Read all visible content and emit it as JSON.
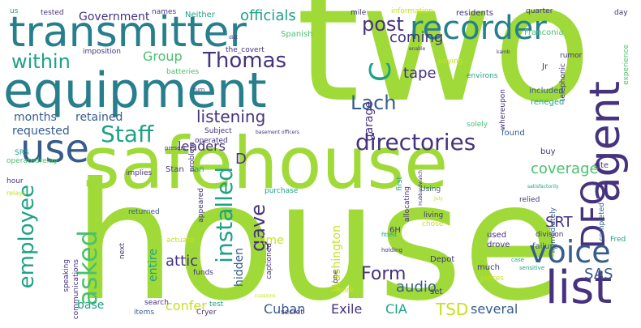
{
  "colors": {
    "background": "#ffffff",
    "lime": "#a0da39",
    "yellow_green": "#c7e020",
    "green": "#4ac16d",
    "teal": "#1fa187",
    "blue_teal": "#277f8e",
    "slate": "#365c8d",
    "indigo": "#46327e",
    "purple": "#440154"
  },
  "words": [
    {
      "text": "two",
      "color": "lime",
      "vertical": false
    },
    {
      "text": "house",
      "color": "lime",
      "vertical": false
    },
    {
      "text": "safehouse",
      "color": "lime",
      "vertical": false
    },
    {
      "text": "equipment",
      "color": "blue_teal",
      "vertical": false
    },
    {
      "text": "transmitter",
      "color": "blue_teal",
      "vertical": false
    },
    {
      "text": "agent",
      "color": "indigo",
      "vertical": true
    },
    {
      "text": "DFO",
      "color": "indigo",
      "vertical": true
    },
    {
      "text": "list",
      "color": "indigo",
      "vertical": false
    },
    {
      "text": "recorder",
      "color": "blue_teal",
      "vertical": false
    },
    {
      "text": "voice",
      "color": "slate",
      "vertical": false
    },
    {
      "text": "use",
      "color": "slate",
      "vertical": false
    },
    {
      "text": "directories",
      "color": "indigo",
      "vertical": false
    },
    {
      "text": "installed",
      "color": "teal",
      "vertical": true
    },
    {
      "text": "Staff",
      "color": "teal",
      "vertical": false
    },
    {
      "text": "asked",
      "color": "green",
      "vertical": true
    },
    {
      "text": "employee",
      "color": "teal",
      "vertical": true
    },
    {
      "text": "within",
      "color": "teal",
      "vertical": false
    },
    {
      "text": "Thomas",
      "color": "indigo",
      "vertical": false
    },
    {
      "text": "C",
      "color": "teal",
      "vertical": true
    },
    {
      "text": "Lach",
      "color": "slate",
      "vertical": false
    },
    {
      "text": "listening",
      "color": "indigo",
      "vertical": false
    },
    {
      "text": "officials",
      "color": "teal",
      "vertical": false
    },
    {
      "text": "post",
      "color": "indigo",
      "vertical": false
    },
    {
      "text": "Government",
      "color": "indigo",
      "vertical": false
    },
    {
      "text": "gave",
      "color": "indigo",
      "vertical": true
    },
    {
      "text": "Form",
      "color": "indigo",
      "vertical": false
    },
    {
      "text": "SAS",
      "color": "slate",
      "vertical": false
    },
    {
      "text": "SRT",
      "color": "indigo",
      "vertical": false
    },
    {
      "text": "TSD",
      "color": "yellow_green",
      "vertical": false
    },
    {
      "text": "tape",
      "color": "indigo",
      "vertical": false
    },
    {
      "text": "coverage",
      "color": "green",
      "vertical": false
    },
    {
      "text": "coming",
      "color": "indigo",
      "vertical": false
    },
    {
      "text": "months",
      "color": "slate",
      "vertical": false
    },
    {
      "text": "retained",
      "color": "slate",
      "vertical": false
    },
    {
      "text": "requested",
      "color": "slate",
      "vertical": false
    },
    {
      "text": "leaders",
      "color": "indigo",
      "vertical": false
    },
    {
      "text": "Group",
      "color": "green",
      "vertical": false
    },
    {
      "text": "attic",
      "color": "indigo",
      "vertical": false
    },
    {
      "text": "audio",
      "color": "slate",
      "vertical": false
    },
    {
      "text": "hidden",
      "color": "slate",
      "vertical": true
    },
    {
      "text": "entire",
      "color": "teal",
      "vertical": true
    },
    {
      "text": "Washington",
      "color": "yellow_green",
      "vertical": true
    },
    {
      "text": "Exile",
      "color": "indigo",
      "vertical": false
    },
    {
      "text": "CIA",
      "color": "teal",
      "vertical": false
    },
    {
      "text": "Cuban",
      "color": "slate",
      "vertical": false
    },
    {
      "text": "confer",
      "color": "yellow_green",
      "vertical": false
    },
    {
      "text": "several",
      "color": "slate",
      "vertical": false
    },
    {
      "text": "base",
      "color": "teal",
      "vertical": false
    },
    {
      "text": "time",
      "color": "yellow_green",
      "vertical": false
    },
    {
      "text": "garage",
      "color": "indigo",
      "vertical": true
    },
    {
      "text": "D",
      "color": "indigo",
      "vertical": false
    },
    {
      "text": "names",
      "color": "indigo",
      "vertical": false
    },
    {
      "text": "Neither",
      "color": "teal",
      "vertical": false
    },
    {
      "text": "us",
      "color": "teal",
      "vertical": false
    },
    {
      "text": "tested",
      "color": "indigo",
      "vertical": false
    },
    {
      "text": "mile",
      "color": "indigo",
      "vertical": false
    },
    {
      "text": "information",
      "color": "yellow_green",
      "vertical": false
    },
    {
      "text": "residents",
      "color": "indigo",
      "vertical": false
    },
    {
      "text": "quarter",
      "color": "indigo",
      "vertical": false
    },
    {
      "text": "day",
      "color": "indigo",
      "vertical": false
    },
    {
      "text": "Spanish",
      "color": "green",
      "vertical": false
    },
    {
      "text": "Franconia",
      "color": "green",
      "vertical": false
    },
    {
      "text": "imposition",
      "color": "indigo",
      "vertical": false
    },
    {
      "text": "the_covert",
      "color": "indigo",
      "vertical": false
    },
    {
      "text": "batteries",
      "color": "green",
      "vertical": false
    },
    {
      "text": "paying",
      "color": "yellow_green",
      "vertical": false
    },
    {
      "text": "environs",
      "color": "teal",
      "vertical": false
    },
    {
      "text": "rumor",
      "color": "indigo",
      "vertical": false
    },
    {
      "text": "Jr",
      "color": "indigo",
      "vertical": false
    },
    {
      "text": "telephonic",
      "color": "indigo",
      "vertical": true
    },
    {
      "text": "experience",
      "color": "green",
      "vertical": true
    },
    {
      "text": "whereupon",
      "color": "indigo",
      "vertical": true
    },
    {
      "text": "included",
      "color": "slate",
      "vertical": false
    },
    {
      "text": "reneged",
      "color": "teal",
      "vertical": false
    },
    {
      "text": "Subject",
      "color": "indigo",
      "vertical": false
    },
    {
      "text": "solely",
      "color": "green",
      "vertical": false
    },
    {
      "text": "found",
      "color": "slate",
      "vertical": false
    },
    {
      "text": "buy",
      "color": "indigo",
      "vertical": false
    },
    {
      "text": "SRS",
      "color": "teal",
      "vertical": false
    },
    {
      "text": "operated",
      "color": "indigo",
      "vertical": false
    },
    {
      "text": "operatedrelay",
      "color": "green",
      "vertical": false
    },
    {
      "text": "Stan",
      "color": "indigo",
      "vertical": false
    },
    {
      "text": "ran",
      "color": "teal",
      "vertical": false
    },
    {
      "text": "site",
      "color": "indigo",
      "vertical": false
    },
    {
      "text": "hour",
      "color": "indigo",
      "vertical": false
    },
    {
      "text": "implies",
      "color": "indigo",
      "vertical": false
    },
    {
      "text": "problem",
      "color": "indigo",
      "vertical": true
    },
    {
      "text": "appeared",
      "color": "indigo",
      "vertical": true
    },
    {
      "text": "first",
      "color": "teal",
      "vertical": true
    },
    {
      "text": "allocating",
      "color": "indigo",
      "vertical": true
    },
    {
      "text": "purchase",
      "color": "teal",
      "vertical": false
    },
    {
      "text": "Using",
      "color": "slate",
      "vertical": false
    },
    {
      "text": "relied",
      "color": "indigo",
      "vertical": false
    },
    {
      "text": "immediately",
      "color": "slate",
      "vertical": true
    },
    {
      "text": "completed",
      "color": "slate",
      "vertical": true
    },
    {
      "text": "returned",
      "color": "slate",
      "vertical": false
    },
    {
      "text": "living",
      "color": "indigo",
      "vertical": false
    },
    {
      "text": "chose",
      "color": "yellow_green",
      "vertical": false
    },
    {
      "text": "6H",
      "color": "indigo",
      "vertical": false
    },
    {
      "text": "used",
      "color": "indigo",
      "vertical": false
    },
    {
      "text": "drove",
      "color": "indigo",
      "vertical": false
    },
    {
      "text": "division",
      "color": "indigo",
      "vertical": false
    },
    {
      "text": "failure",
      "color": "slate",
      "vertical": false
    },
    {
      "text": "Fred",
      "color": "teal",
      "vertical": false
    },
    {
      "text": "actuate",
      "color": "yellow_green",
      "vertical": false
    },
    {
      "text": "next",
      "color": "indigo",
      "vertical": true
    },
    {
      "text": "speaking",
      "color": "indigo",
      "vertical": true
    },
    {
      "text": "captioned",
      "color": "indigo",
      "vertical": true
    },
    {
      "text": "funds",
      "color": "indigo",
      "vertical": false
    },
    {
      "text": "one",
      "color": "indigo",
      "vertical": true
    },
    {
      "text": "Depot",
      "color": "indigo",
      "vertical": false
    },
    {
      "text": "much",
      "color": "indigo",
      "vertical": false
    },
    {
      "text": "pieces",
      "color": "yellow_green",
      "vertical": false
    },
    {
      "text": "work",
      "color": "yellow_green",
      "vertical": false
    },
    {
      "text": "set",
      "color": "indigo",
      "vertical": false
    },
    {
      "text": "communications",
      "color": "indigo",
      "vertical": true
    },
    {
      "text": "search",
      "color": "indigo",
      "vertical": false
    },
    {
      "text": "test",
      "color": "teal",
      "vertical": false
    },
    {
      "text": "Cryer",
      "color": "indigo",
      "vertical": false
    },
    {
      "text": "secret",
      "color": "indigo",
      "vertical": false
    },
    {
      "text": "items",
      "color": "slate",
      "vertical": false
    },
    {
      "text": "relays",
      "color": "yellow_green",
      "vertical": false
    },
    {
      "text": "turn",
      "color": "indigo",
      "vertical": false
    },
    {
      "text": "present",
      "color": "indigo",
      "vertical": false
    },
    {
      "text": "basement officers",
      "color": "indigo",
      "vertical": false
    },
    {
      "text": "holding",
      "color": "indigo",
      "vertical": false
    },
    {
      "text": "fitted",
      "color": "teal",
      "vertical": false
    },
    {
      "text": "case",
      "color": "teal",
      "vertical": false
    },
    {
      "text": "sensitive",
      "color": "teal",
      "vertical": false
    },
    {
      "text": "cussions",
      "color": "yellow_green",
      "vertical": false
    },
    {
      "text": "July",
      "color": "yellow_green",
      "vertical": false
    },
    {
      "text": "satisfactorily",
      "color": "teal",
      "vertical": false
    },
    {
      "text": "enable",
      "color": "indigo",
      "vertical": false
    },
    {
      "text": "Hubbardwatch",
      "color": "indigo",
      "vertical": true
    },
    {
      "text": "dict",
      "color": "indigo",
      "vertical": false
    },
    {
      "text": "kamb",
      "color": "indigo",
      "vertical": false
    }
  ]
}
